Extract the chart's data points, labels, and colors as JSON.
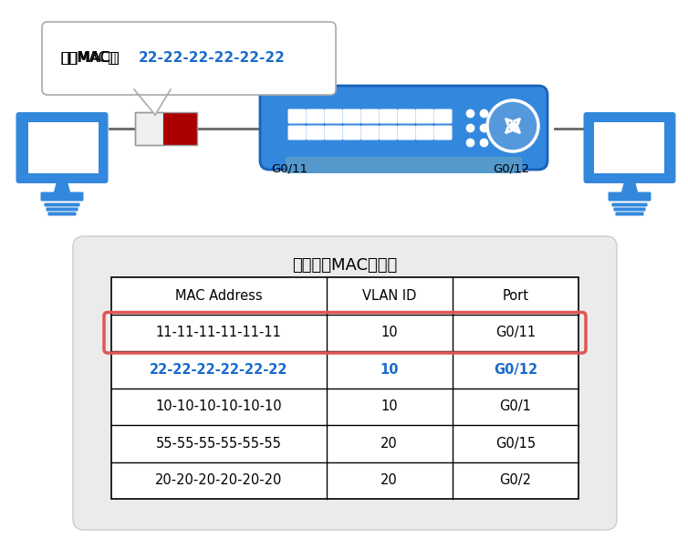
{
  "title": "交换机的MAC地址表",
  "bubble_text": "目的MAC：",
  "bubble_mac": "22-22-22-22-22-22",
  "port_left": "G0/11",
  "port_right": "G0/12",
  "table_headers": [
    "MAC Address",
    "VLAN ID",
    "Port"
  ],
  "table_rows": [
    [
      "11-11-11-11-11-11",
      "10",
      "G0/11"
    ],
    [
      "22-22-22-22-22-22",
      "10",
      "G0/12"
    ],
    [
      "10-10-10-10-10-10",
      "10",
      "G0/1"
    ],
    [
      "55-55-55-55-55-55",
      "20",
      "G0/15"
    ],
    [
      "20-20-20-20-20-20",
      "20",
      "G0/2"
    ]
  ],
  "highlight_row": 1,
  "highlight_color": "#e05555",
  "blue_color": "#1a6bcc",
  "switch_blue": "#3388dd",
  "switch_dark": "#1a60b8",
  "bg_color": "#ffffff",
  "table_outer_bg": "#ebebeb",
  "bubble_text_color": "#000000",
  "port_label_color": "#333333",
  "line_color": "#666666",
  "frame_white": "#f0f0f0",
  "frame_red": "#aa0000",
  "globe_bg": "#5599dd"
}
